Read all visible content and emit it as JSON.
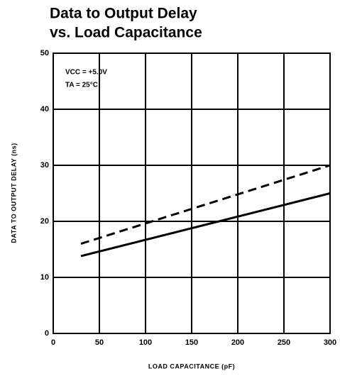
{
  "chart_data": {
    "type": "line",
    "title_lines": [
      "Data to Output Delay",
      "vs. Load Capacitance"
    ],
    "x_label": "LOAD CAPACITANCE (pF)",
    "y_label": "DATA TO OUTPUT DELAY (ns)",
    "annotations": [
      "VCC = +5.0V",
      "TA = 25°C"
    ],
    "xlim": [
      0,
      300
    ],
    "xticks": [
      0,
      50,
      100,
      150,
      200,
      250,
      300
    ],
    "ylim": [
      0,
      50
    ],
    "yticks": [
      0,
      10,
      20,
      30,
      40,
      50
    ],
    "grid": true,
    "series": [
      {
        "color": "#000000",
        "dashed": true,
        "x": [
          30,
          300
        ],
        "values": [
          16,
          30
        ]
      },
      {
        "color": "#000000",
        "dashed": false,
        "x": [
          30,
          300
        ],
        "values": [
          13.8,
          25
        ]
      }
    ]
  }
}
